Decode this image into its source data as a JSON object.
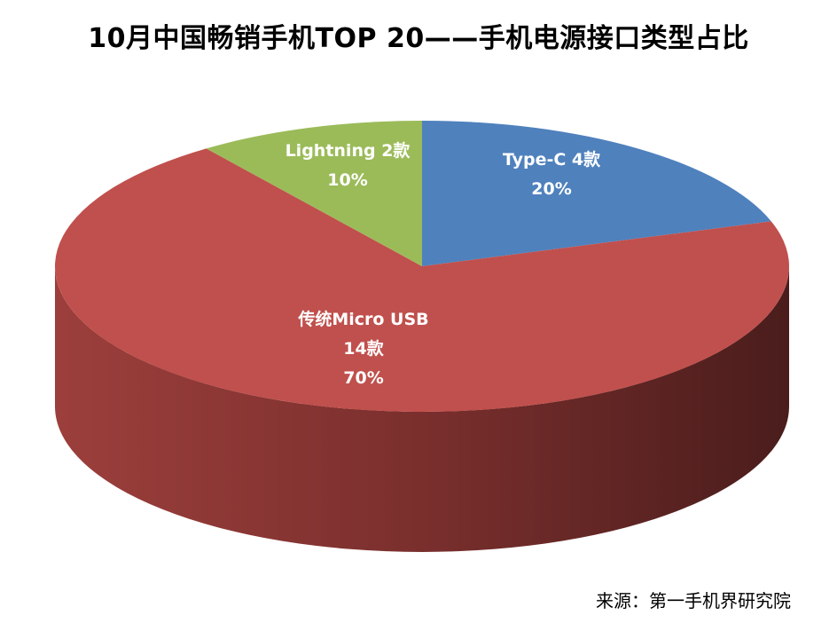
{
  "chart_data": {
    "type": "pie",
    "title": "10月中国畅销手机TOP 20——手机电源接口类型占比",
    "slices": [
      {
        "label": "Type-C",
        "count_label": "4款",
        "value": 4,
        "percent": "20%",
        "color": "#4F81BD"
      },
      {
        "label": "传统Micro USB",
        "count_label": "14款",
        "value": 14,
        "percent": "70%",
        "color": "#C0504D"
      },
      {
        "label": "Lightning",
        "count_label": "2款",
        "value": 2,
        "percent": "10%",
        "color": "#9BBB59"
      }
    ],
    "style": "3d"
  },
  "source": "来源：第一手机界研究院"
}
